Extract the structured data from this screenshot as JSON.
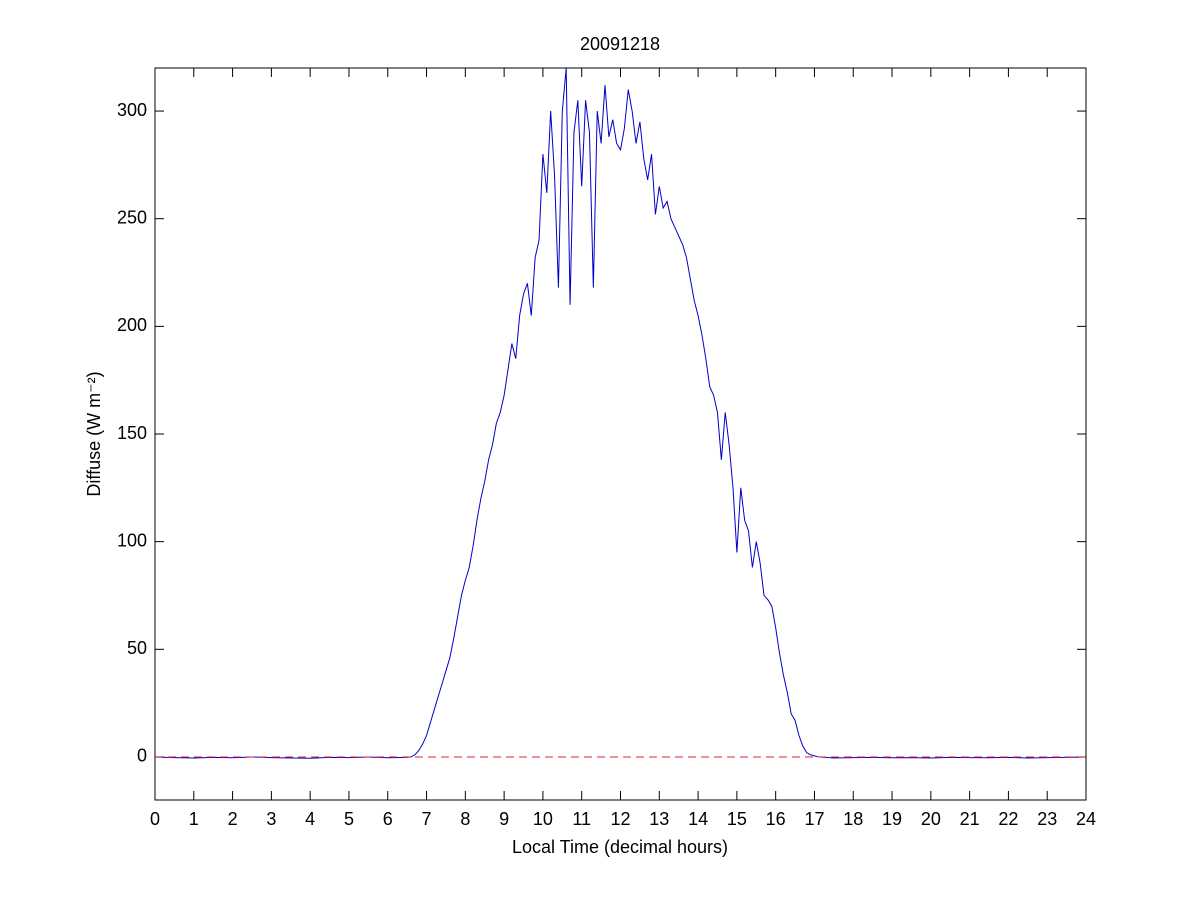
{
  "chart_data": {
    "type": "line",
    "title": "20091218",
    "x_label": "Local Time (decimal hours)",
    "y_label": "Diffuse (W m⁻²)",
    "color": "#0000cc",
    "hline": 0,
    "hline_color": "#e02020",
    "xlim": [
      0,
      24
    ],
    "xticks": [
      0,
      1,
      2,
      3,
      4,
      5,
      6,
      7,
      8,
      9,
      10,
      11,
      12,
      13,
      14,
      15,
      16,
      17,
      18,
      19,
      20,
      21,
      22,
      23,
      24
    ],
    "ylim": [
      -20,
      320
    ],
    "yticks": [
      0,
      50,
      100,
      150,
      200,
      250,
      300
    ],
    "grid": false,
    "x": [
      0,
      0.5,
      1,
      1.5,
      2,
      2.5,
      3,
      3.5,
      4,
      4.5,
      5,
      5.5,
      6,
      6.5,
      6.6,
      6.7,
      6.8,
      6.9,
      7.0,
      7.1,
      7.2,
      7.3,
      7.4,
      7.5,
      7.6,
      7.7,
      7.8,
      7.9,
      8.0,
      8.1,
      8.2,
      8.3,
      8.4,
      8.5,
      8.6,
      8.7,
      8.8,
      8.9,
      9.0,
      9.1,
      9.2,
      9.3,
      9.4,
      9.5,
      9.6,
      9.7,
      9.8,
      9.9,
      10.0,
      10.1,
      10.2,
      10.3,
      10.4,
      10.5,
      10.6,
      10.7,
      10.8,
      10.9,
      11.0,
      11.1,
      11.2,
      11.3,
      11.4,
      11.5,
      11.6,
      11.7,
      11.8,
      11.9,
      12.0,
      12.1,
      12.2,
      12.3,
      12.4,
      12.5,
      12.6,
      12.7,
      12.8,
      12.9,
      13.0,
      13.1,
      13.2,
      13.3,
      13.4,
      13.5,
      13.6,
      13.7,
      13.8,
      13.9,
      14.0,
      14.1,
      14.2,
      14.3,
      14.4,
      14.5,
      14.6,
      14.7,
      14.8,
      14.9,
      15.0,
      15.1,
      15.2,
      15.3,
      15.4,
      15.5,
      15.6,
      15.7,
      15.8,
      15.9,
      16.0,
      16.1,
      16.2,
      16.3,
      16.4,
      16.5,
      16.6,
      16.7,
      16.8,
      16.9,
      17.0,
      17.1,
      17.5,
      18,
      18.5,
      19,
      19.5,
      20,
      20.5,
      21,
      21.5,
      22,
      22.5,
      23,
      23.5,
      24
    ],
    "values": [
      0,
      -0.3,
      -0.5,
      -0.2,
      -0.4,
      0,
      -0.3,
      -0.5,
      -0.6,
      -0.2,
      -0.3,
      0,
      -0.4,
      -0.2,
      0,
      1,
      3,
      6,
      10,
      16,
      22,
      28,
      34,
      40,
      46,
      55,
      65,
      75,
      82,
      88,
      98,
      110,
      120,
      128,
      138,
      145,
      155,
      160,
      168,
      180,
      192,
      185,
      205,
      215,
      220,
      205,
      232,
      240,
      280,
      262,
      300,
      270,
      218,
      300,
      320,
      210,
      290,
      305,
      265,
      305,
      290,
      218,
      300,
      285,
      312,
      288,
      296,
      285,
      282,
      292,
      310,
      300,
      285,
      295,
      278,
      268,
      280,
      252,
      265,
      255,
      258,
      250,
      246,
      242,
      238,
      232,
      222,
      212,
      205,
      196,
      185,
      172,
      168,
      160,
      138,
      160,
      145,
      125,
      95,
      125,
      110,
      105,
      88,
      100,
      90,
      75,
      73,
      70,
      60,
      48,
      38,
      30,
      20,
      17,
      10,
      5,
      2,
      1,
      0.5,
      0,
      -0.5,
      -0.3,
      -0.2,
      -0.4,
      -0.3,
      -0.5,
      -0.2,
      -0.3,
      -0.4,
      -0.2,
      -0.5,
      -0.3,
      -0.2,
      0
    ]
  }
}
